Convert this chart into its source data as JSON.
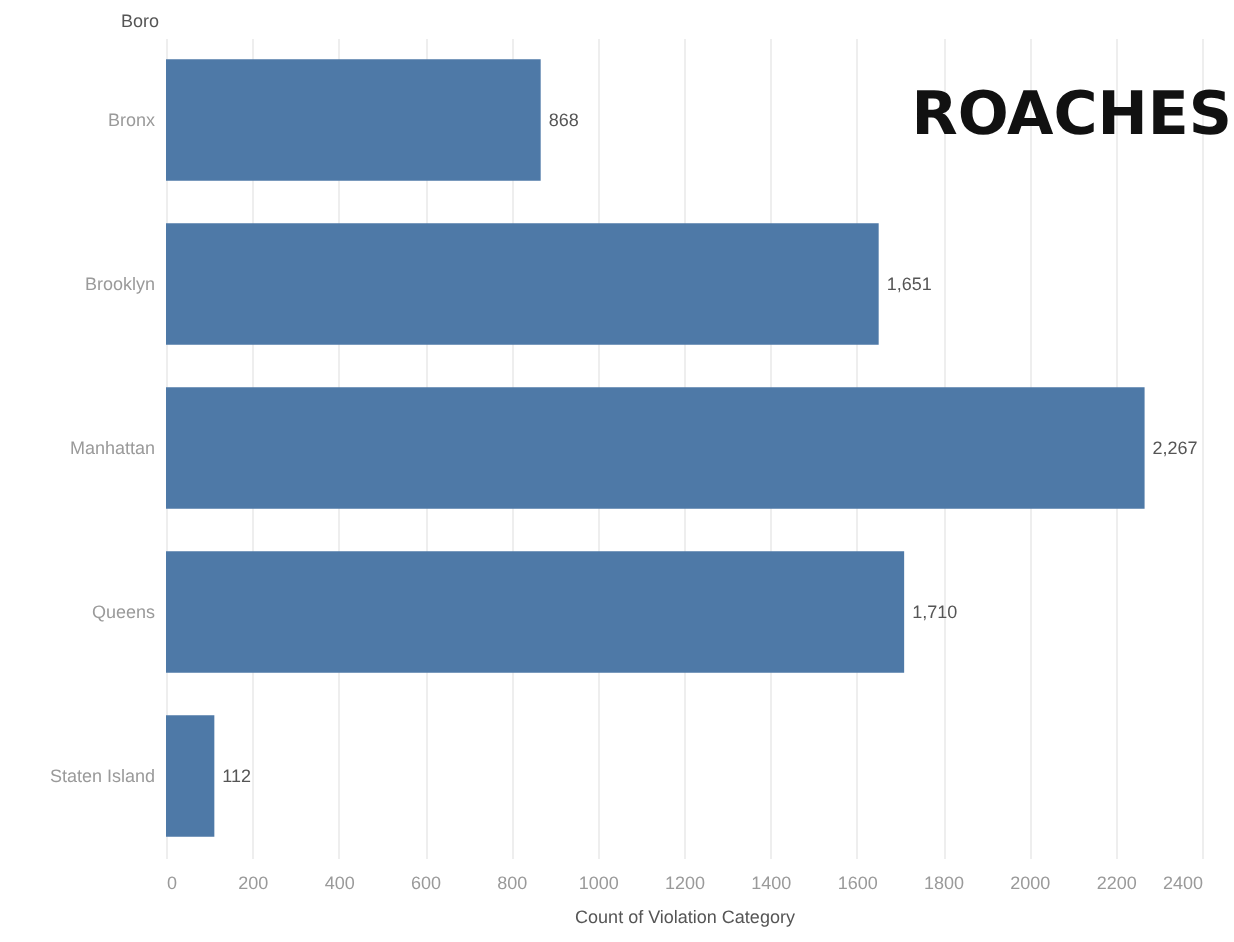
{
  "chart_data": {
    "type": "bar",
    "orientation": "horizontal",
    "title": "ROACHES",
    "ylabel": "Boro",
    "xlabel": "Count of Violation Category",
    "categories": [
      "Bronx",
      "Brooklyn",
      "Manhattan",
      "Queens",
      "Staten Island"
    ],
    "values": [
      868,
      1651,
      2267,
      1710,
      112
    ],
    "value_labels": [
      "868",
      "1,651",
      "2,267",
      "1,710",
      "112"
    ],
    "color": "#4e79a7",
    "xlim": [
      0,
      2400
    ],
    "xticks": [
      0,
      200,
      400,
      600,
      800,
      1000,
      1200,
      1400,
      1600,
      1800,
      2000,
      2200,
      2400
    ],
    "grid": "x"
  }
}
